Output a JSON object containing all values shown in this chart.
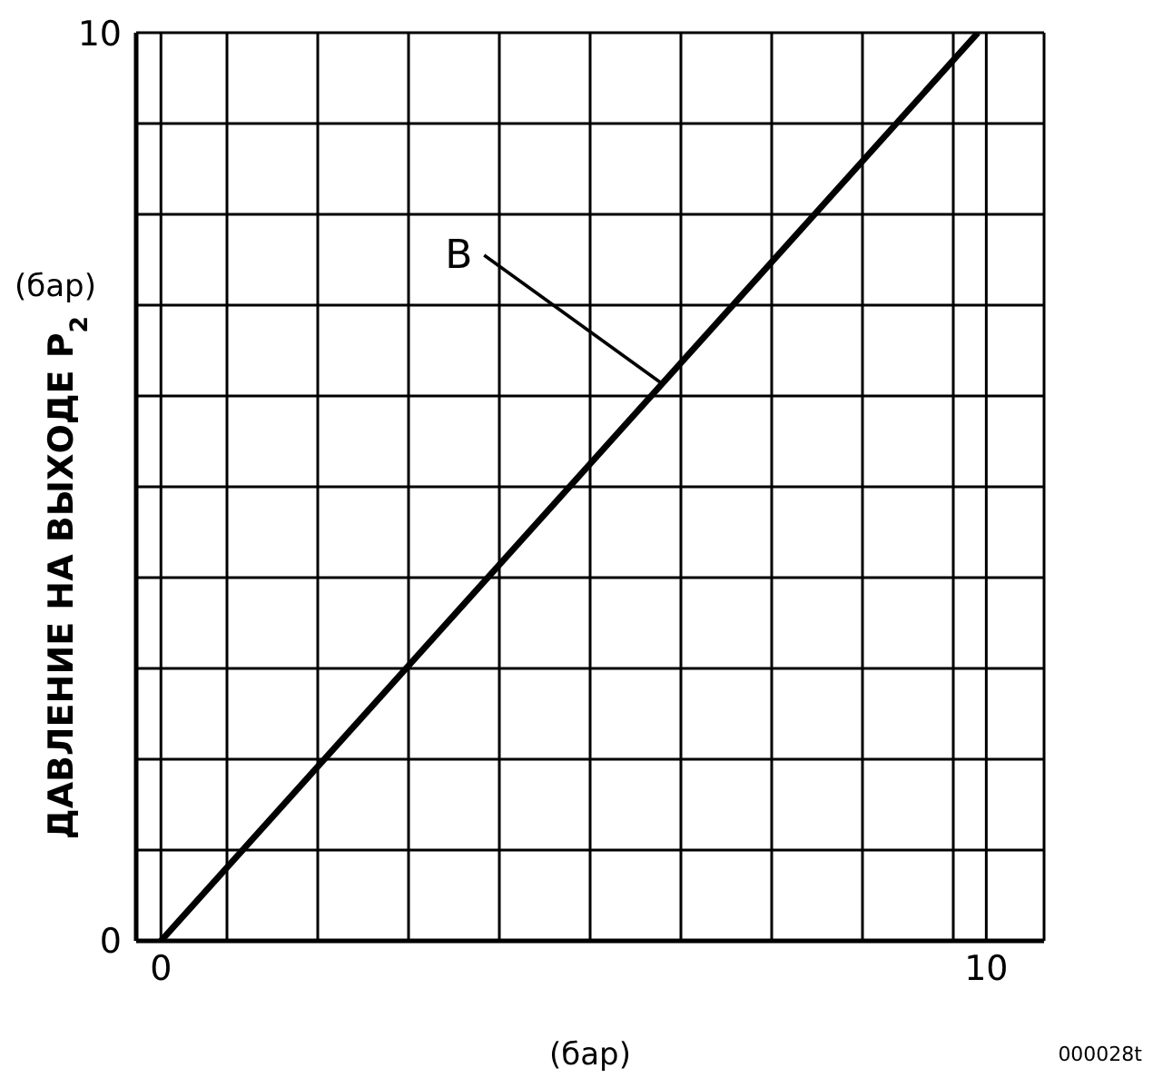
{
  "chart_data": {
    "type": "line",
    "ylabel": "ДАВЛЕНИЕ НА ВЫХОДЕ P$_{2}$",
    "xlabel": "(бар)",
    "series": [
      {
        "color": "#000000",
        "x": [
          0,
          9.9
        ],
        "values": [
          0,
          10
        ]
      }
    ],
    "xlim": [
      -0.3,
      10.7
    ],
    "xticks": [
      {
        "value": -0.3,
        "label": null
      },
      0,
      {
        "value": 0.8,
        "label": null
      },
      {
        "value": 1.9,
        "label": null
      },
      {
        "value": 3.0,
        "label": null
      },
      {
        "value": 4.1,
        "label": null
      },
      {
        "value": 5.2,
        "label": null
      },
      {
        "value": 6.3,
        "label": null
      },
      {
        "value": 7.4,
        "label": null
      },
      {
        "value": 8.5,
        "label": null
      },
      {
        "value": 9.6,
        "label": null
      },
      10,
      {
        "value": 10.7,
        "label": null
      }
    ],
    "ylim": [
      0,
      10
    ],
    "yticks": [
      0,
      {
        "value": 1,
        "label": null
      },
      {
        "value": 2,
        "label": null
      },
      {
        "value": 3,
        "label": null
      },
      {
        "value": 4,
        "label": null
      },
      {
        "value": 5,
        "label": null
      },
      {
        "value": 6,
        "label": null
      },
      {
        "value": 7,
        "label": null
      },
      {
        "value": 8,
        "label": null
      },
      {
        "value": 9,
        "label": null
      },
      10
    ],
    "grid": true,
    "legend": false,
    "marker": "none",
    "line_style": "solid",
    "annotations": [
      {
        "text": "B",
        "x": 6.05,
        "y": 6.15
      },
      "(бар)",
      "000028t"
    ]
  }
}
